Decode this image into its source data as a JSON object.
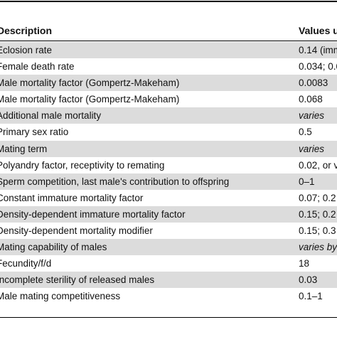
{
  "table": {
    "headers": [
      "Description",
      "Values u"
    ],
    "rows": [
      {
        "description": "Eclosion rate",
        "value": "0.14 (imm",
        "italic": false,
        "shaded": true
      },
      {
        "description": "Female death rate",
        "value": "0.034; 0.0",
        "italic": false,
        "shaded": false
      },
      {
        "description": "Male mortality factor (Gompertz-Makeham)",
        "value": "0.0083",
        "italic": false,
        "shaded": true
      },
      {
        "description": "Male mortality factor (Gompertz-Makeham)",
        "value": "0.068",
        "italic": false,
        "shaded": false
      },
      {
        "description": "Additional male mortality",
        "value": "varies",
        "italic": true,
        "shaded": true
      },
      {
        "description": "Primary sex ratio",
        "value": "0.5",
        "italic": false,
        "shaded": false
      },
      {
        "description": "Mating term",
        "value": "varies",
        "italic": true,
        "shaded": true
      },
      {
        "description": "Polyandry factor, receptivity to remating",
        "value": "0.02, or v",
        "italic": false,
        "shaded": false
      },
      {
        "description": "Sperm competition, last male's contribution to offspring",
        "value": "0–1",
        "italic": false,
        "shaded": true
      },
      {
        "description": "Constant immature mortality factor",
        "value": "0.07; 0.2",
        "italic": false,
        "shaded": false
      },
      {
        "description": "Density-dependent immature mortality factor",
        "value": "0.15; 0.2",
        "italic": false,
        "shaded": true
      },
      {
        "description": "Density-dependent mortality modifier",
        "value": "0.15; 0.3",
        "italic": false,
        "shaded": false
      },
      {
        "description": "Mating capability of males",
        "value": "varies by",
        "italic": true,
        "shaded": true
      },
      {
        "description": "Fecundity/f/d",
        "value": "18",
        "italic": false,
        "shaded": false
      },
      {
        "description": "Incomplete sterility of released males",
        "value": "0.03",
        "italic": false,
        "shaded": true
      },
      {
        "description": "Male mating competitiveness",
        "value": "0.1–1",
        "italic": false,
        "shaded": false
      }
    ]
  }
}
